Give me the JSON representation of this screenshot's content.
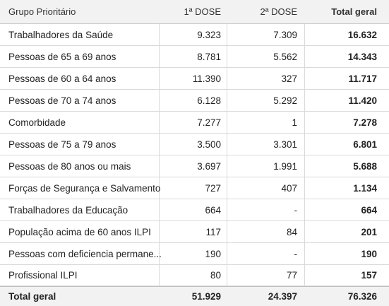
{
  "header": {
    "col1": "Grupo Prioritário",
    "col2": "1ª DOSE",
    "col3": "2ª DOSE",
    "col4": "Total geral"
  },
  "rows": [
    {
      "group": "Trabalhadores da Saúde",
      "dose1": "9.323",
      "dose2": "7.309",
      "total": "16.632"
    },
    {
      "group": "Pessoas de 65 a 69 anos",
      "dose1": "8.781",
      "dose2": "5.562",
      "total": "14.343"
    },
    {
      "group": "Pessoas de 60 a 64 anos",
      "dose1": "11.390",
      "dose2": "327",
      "total": "11.717"
    },
    {
      "group": "Pessoas de 70 a 74 anos",
      "dose1": "6.128",
      "dose2": "5.292",
      "total": "11.420"
    },
    {
      "group": "Comorbidade",
      "dose1": "7.277",
      "dose2": "1",
      "total": "7.278"
    },
    {
      "group": "Pessoas de 75 a 79 anos",
      "dose1": "3.500",
      "dose2": "3.301",
      "total": "6.801"
    },
    {
      "group": "Pessoas de 80 anos ou mais",
      "dose1": "3.697",
      "dose2": "1.991",
      "total": "5.688"
    },
    {
      "group": "Forças de Segurança e Salvamento",
      "dose1": "727",
      "dose2": "407",
      "total": "1.134"
    },
    {
      "group": "Trabalhadores da Educação",
      "dose1": "664",
      "dose2": "-",
      "total": "664"
    },
    {
      "group": "População acima de 60 anos ILPI",
      "dose1": "117",
      "dose2": "84",
      "total": "201"
    },
    {
      "group": "Pessoas com deficiencia permane...",
      "dose1": "190",
      "dose2": "-",
      "total": "190"
    },
    {
      "group": "Profissional ILPI",
      "dose1": "80",
      "dose2": "77",
      "total": "157"
    }
  ],
  "footer": {
    "label": "Total geral",
    "dose1": "51.929",
    "dose2": "24.397",
    "total": "76.326"
  }
}
